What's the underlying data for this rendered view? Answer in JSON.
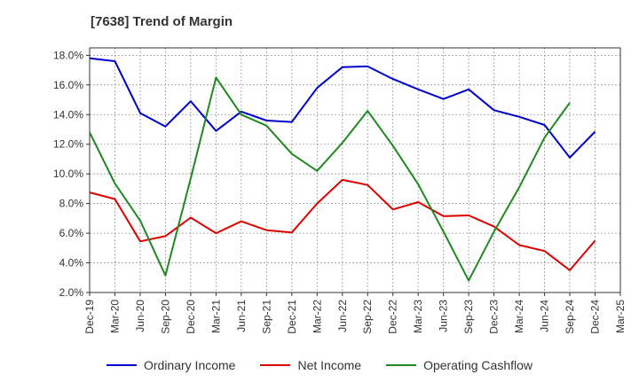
{
  "chart_data": {
    "type": "line",
    "title": "[7638]  Trend of Margin",
    "xlabel": "",
    "ylabel": "",
    "categories": [
      "Dec-19",
      "Mar-20",
      "Jun-20",
      "Sep-20",
      "Dec-20",
      "Mar-21",
      "Jun-21",
      "Sep-21",
      "Dec-21",
      "Mar-22",
      "Jun-22",
      "Sep-22",
      "Dec-22",
      "Mar-23",
      "Jun-23",
      "Sep-23",
      "Dec-23",
      "Mar-24",
      "Jun-24",
      "Sep-24",
      "Dec-24",
      "Mar-25"
    ],
    "ylim": [
      2.0,
      18.5
    ],
    "yticks": [
      2.0,
      4.0,
      6.0,
      8.0,
      10.0,
      12.0,
      14.0,
      16.0,
      18.0
    ],
    "ytick_labels": [
      "2.0%",
      "4.0%",
      "6.0%",
      "8.0%",
      "10.0%",
      "12.0%",
      "14.0%",
      "16.0%",
      "18.0%"
    ],
    "grid": true,
    "legend_position": "bottom",
    "series": [
      {
        "name": "Ordinary Income",
        "color": "#0000cc",
        "values": [
          17.8,
          17.6,
          14.1,
          13.2,
          14.9,
          12.9,
          14.2,
          13.6,
          13.5,
          15.8,
          17.2,
          17.25,
          16.4,
          15.7,
          15.05,
          15.7,
          14.3,
          13.85,
          13.3,
          11.1,
          12.85,
          null
        ]
      },
      {
        "name": "Net Income",
        "color": "#dd0000",
        "values": [
          8.75,
          8.3,
          5.45,
          5.8,
          7.05,
          6.0,
          6.8,
          6.2,
          6.05,
          8.0,
          9.6,
          9.25,
          7.6,
          8.1,
          7.15,
          7.2,
          6.45,
          5.2,
          4.8,
          3.5,
          5.5,
          null
        ]
      },
      {
        "name": "Operating Cashflow",
        "color": "#228822",
        "values": [
          12.8,
          9.35,
          6.85,
          3.15,
          9.7,
          16.5,
          14.0,
          13.25,
          11.35,
          10.2,
          12.1,
          14.25,
          11.9,
          9.3,
          6.1,
          2.8,
          6.1,
          9.1,
          12.45,
          14.8,
          null,
          null
        ]
      }
    ]
  }
}
